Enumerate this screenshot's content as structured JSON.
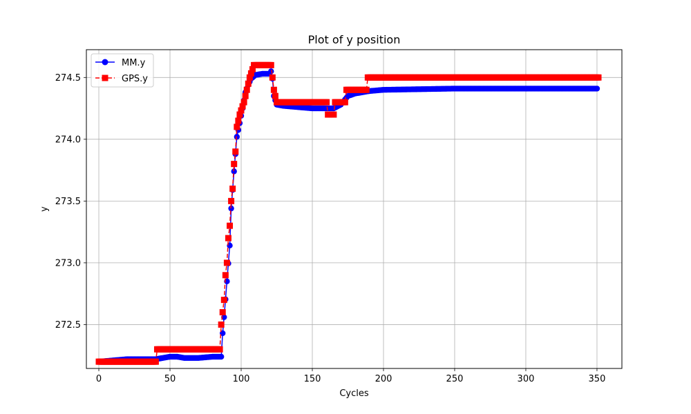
{
  "chart_data": {
    "type": "line",
    "title": "Plot of y position",
    "xlabel": "Cycles",
    "ylabel": "y",
    "xlim": [
      -8.75,
      367.5
    ],
    "ylim": [
      272.145,
      274.725
    ],
    "xticks": [
      0,
      50,
      100,
      150,
      200,
      250,
      300,
      350
    ],
    "yticks": [
      272.5,
      273.0,
      273.5,
      274.0,
      274.5
    ],
    "grid": true,
    "legend_position": "top-left",
    "series": [
      {
        "name": "MM.y",
        "color": "#0000ff",
        "marker": "circle",
        "linestyle": "solid",
        "points": [
          [
            0,
            272.2
          ],
          [
            10,
            272.21
          ],
          [
            20,
            272.22
          ],
          [
            30,
            272.22
          ],
          [
            40,
            272.22
          ],
          [
            50,
            272.24
          ],
          [
            55,
            272.24
          ],
          [
            60,
            272.23
          ],
          [
            70,
            272.23
          ],
          [
            80,
            272.24
          ],
          [
            86,
            272.24
          ],
          [
            87,
            272.43
          ],
          [
            88,
            272.56
          ],
          [
            90,
            272.85
          ],
          [
            92,
            273.14
          ],
          [
            93,
            273.44
          ],
          [
            95,
            273.74
          ],
          [
            97,
            274.02
          ],
          [
            99,
            274.13
          ],
          [
            101,
            274.25
          ],
          [
            103,
            274.38
          ],
          [
            105,
            274.44
          ],
          [
            107,
            274.49
          ],
          [
            110,
            274.52
          ],
          [
            115,
            274.53
          ],
          [
            120,
            274.53
          ],
          [
            121,
            274.55
          ],
          [
            122,
            274.49
          ],
          [
            123,
            274.35
          ],
          [
            125,
            274.28
          ],
          [
            130,
            274.27
          ],
          [
            140,
            274.26
          ],
          [
            150,
            274.25
          ],
          [
            160,
            274.25
          ],
          [
            165,
            274.25
          ],
          [
            170,
            274.28
          ],
          [
            175,
            274.35
          ],
          [
            180,
            274.37
          ],
          [
            190,
            274.39
          ],
          [
            200,
            274.4
          ],
          [
            250,
            274.41
          ],
          [
            300,
            274.41
          ],
          [
            350,
            274.41
          ]
        ]
      },
      {
        "name": "GPS.y",
        "color": "#ff0000",
        "marker": "square",
        "linestyle": "dashed",
        "points": [
          [
            0,
            272.2
          ],
          [
            40,
            272.2
          ],
          [
            41,
            272.3
          ],
          [
            85,
            272.3
          ],
          [
            86,
            272.5
          ],
          [
            87,
            272.6
          ],
          [
            88,
            272.7
          ],
          [
            89,
            272.9
          ],
          [
            90,
            273.0
          ],
          [
            91,
            273.2
          ],
          [
            92,
            273.3
          ],
          [
            93,
            273.5
          ],
          [
            94,
            273.6
          ],
          [
            95,
            273.8
          ],
          [
            96,
            273.9
          ],
          [
            97,
            274.1
          ],
          [
            99,
            274.2
          ],
          [
            102,
            274.3
          ],
          [
            104,
            274.4
          ],
          [
            106,
            274.5
          ],
          [
            109,
            274.6
          ],
          [
            121,
            274.6
          ],
          [
            122,
            274.5
          ],
          [
            123,
            274.4
          ],
          [
            125,
            274.3
          ],
          [
            160,
            274.3
          ],
          [
            161,
            274.2
          ],
          [
            165,
            274.2
          ],
          [
            166,
            274.3
          ],
          [
            173,
            274.3
          ],
          [
            174,
            274.4
          ],
          [
            188,
            274.4
          ],
          [
            189,
            274.5
          ],
          [
            351,
            274.5
          ]
        ]
      }
    ]
  }
}
